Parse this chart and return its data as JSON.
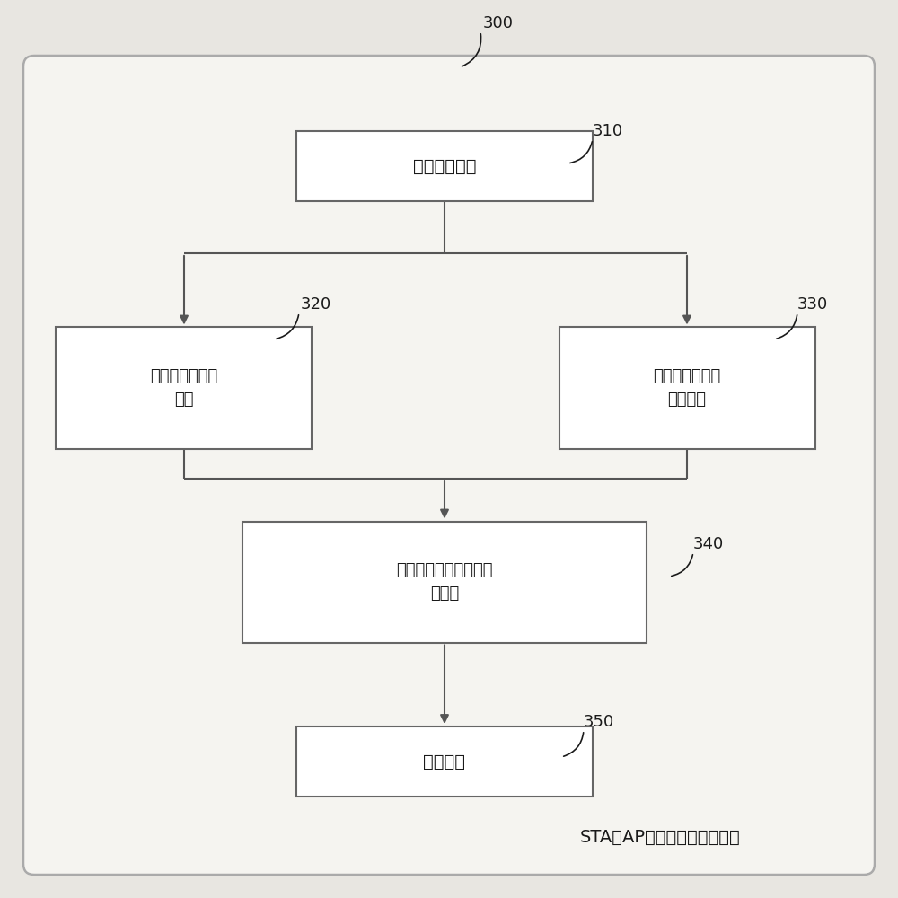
{
  "background_color": "#e8e6e1",
  "inner_bg_color": "#f5f4f0",
  "outer_border_color": "#aaaaaa",
  "box_color": "#ffffff",
  "box_edge_color": "#666666",
  "text_color": "#1a1a1a",
  "arrow_color": "#555555",
  "title_text": "STA与AP传输能力的匹配系统",
  "label_300": "300",
  "label_310": "310",
  "label_320": "320",
  "label_330": "330",
  "label_340": "340",
  "label_350": "350",
  "box_310_text": "参数获取模块",
  "box_320_line1": "带宽利用率计算",
  "box_320_line2": "模块",
  "box_330_line1": "频谱资源利用率",
  "box_330_line2": "计算模块",
  "box_340_line1": "综合传输能力匹配度计",
  "box_340_line2": "算模块",
  "box_350_text": "选择模块",
  "figsize": [
    10,
    10
  ],
  "dpi": 100
}
